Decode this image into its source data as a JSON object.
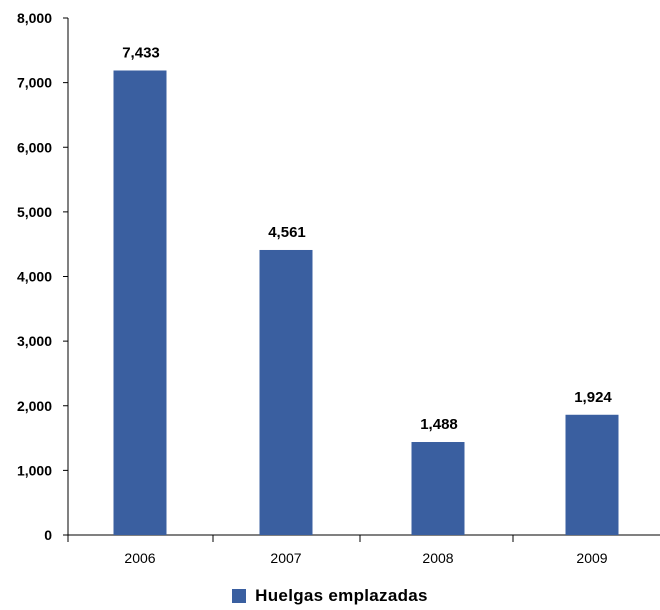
{
  "chart_data": {
    "type": "bar",
    "title": "",
    "xlabel": "",
    "ylabel": "",
    "categories": [
      "2006",
      "2007",
      "2008",
      "2009"
    ],
    "series": [
      {
        "name": "Huelgas emplazadas",
        "values": [
          7433,
          4561,
          1488,
          1924
        ],
        "data_labels": [
          "7,433",
          "4,561",
          "1,488",
          "1,924"
        ],
        "color": "#3a5fa0"
      }
    ],
    "ylim": [
      0,
      8000
    ],
    "yticks": [
      0,
      1000,
      2000,
      3000,
      4000,
      5000,
      6000,
      7000,
      8000
    ],
    "ytick_labels": [
      "0",
      "1,000",
      "2,000",
      "3,000",
      "4,000",
      "5,000",
      "6,000",
      "7,000",
      "8,000"
    ],
    "grid": false,
    "legend_position": "bottom-center"
  }
}
